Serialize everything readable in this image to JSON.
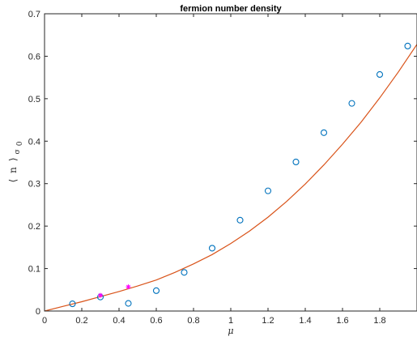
{
  "chart_data": {
    "type": "scatter",
    "title": "fermion number density",
    "xlabel": "μ",
    "ylabel": {
      "open": "⟨",
      "var": "n",
      "close": "⟩",
      "sub": "σ",
      "subsub": "0"
    },
    "xlim": [
      0,
      2
    ],
    "ylim": [
      0,
      0.7
    ],
    "xticks": [
      0,
      0.2,
      0.4,
      0.6,
      0.8,
      1,
      1.2,
      1.4,
      1.6,
      1.8
    ],
    "yticks": [
      0,
      0.1,
      0.2,
      0.3,
      0.4,
      0.5,
      0.6,
      0.7
    ],
    "xtick_labels": [
      "0",
      "0.2",
      "0.4",
      "0.6",
      "0.8",
      "1",
      "1.2",
      "1.4",
      "1.6",
      "1.8"
    ],
    "ytick_labels": [
      "0",
      "0.1",
      "0.2",
      "0.3",
      "0.4",
      "0.5",
      "0.6",
      "0.7"
    ],
    "grid": false,
    "series": [
      {
        "marker": "circle",
        "color": "#0072bd",
        "x": [
          0.15,
          0.3,
          0.45,
          0.6,
          0.75,
          0.9,
          1.05,
          1.2,
          1.35,
          1.5,
          1.65,
          1.8,
          1.95
        ],
        "y": [
          0.017,
          0.033,
          0.018,
          0.048,
          0.091,
          0.148,
          0.214,
          0.283,
          0.351,
          0.42,
          0.489,
          0.557,
          0.624
        ]
      },
      {
        "marker": "star",
        "color": "#ff00ff",
        "x": [
          0.3,
          0.45
        ],
        "y": [
          0.037,
          0.057
        ]
      },
      {
        "type": "line",
        "color": "#d95319",
        "x": [
          0,
          0.1,
          0.2,
          0.3,
          0.4,
          0.5,
          0.6,
          0.7,
          0.8,
          0.9,
          1.0,
          1.1,
          1.2,
          1.3,
          1.4,
          1.5,
          1.6,
          1.7,
          1.8,
          1.9,
          2.0
        ],
        "y": [
          0,
          0.011,
          0.022,
          0.034,
          0.046,
          0.059,
          0.073,
          0.091,
          0.111,
          0.133,
          0.159,
          0.188,
          0.221,
          0.258,
          0.299,
          0.344,
          0.393,
          0.445,
          0.502,
          0.563,
          0.628
        ]
      }
    ]
  }
}
